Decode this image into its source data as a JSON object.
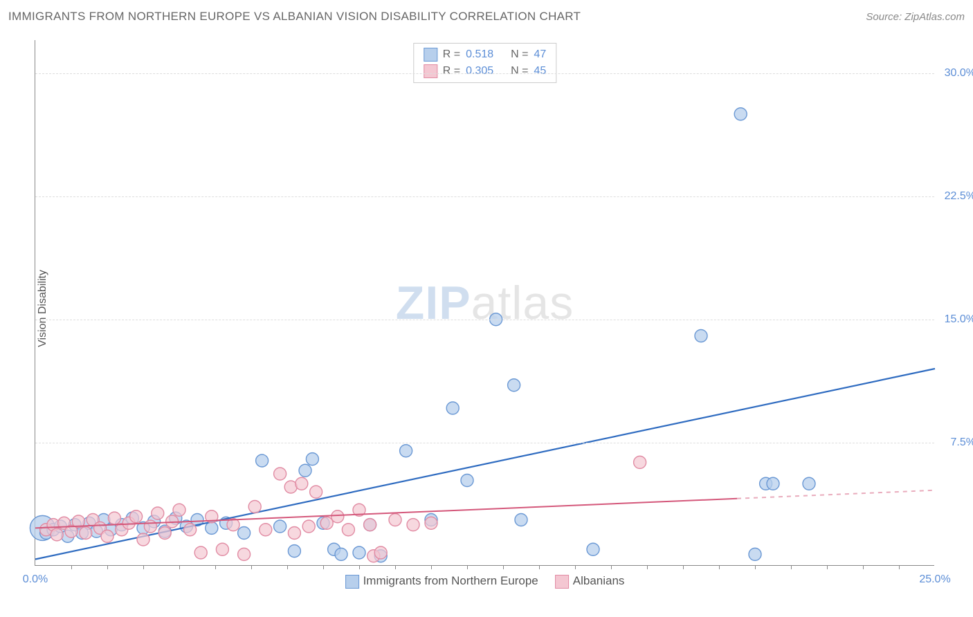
{
  "title": "IMMIGRANTS FROM NORTHERN EUROPE VS ALBANIAN VISION DISABILITY CORRELATION CHART",
  "source_label": "Source: ",
  "source_value": "ZipAtlas.com",
  "y_axis_label": "Vision Disability",
  "watermark": {
    "bold": "ZIP",
    "light": "atlas"
  },
  "chart": {
    "type": "scatter",
    "xlim": [
      0,
      25
    ],
    "ylim": [
      0,
      32
    ],
    "x_ticks": [
      0.0,
      25.0
    ],
    "x_tick_labels": [
      "0.0%",
      "25.0%"
    ],
    "x_minor_ticks": [
      1,
      2,
      3,
      4,
      5,
      6,
      7,
      8,
      9,
      10,
      11,
      12,
      13,
      14,
      15,
      16,
      17,
      18,
      19,
      20,
      21,
      22,
      23,
      24
    ],
    "y_ticks": [
      7.5,
      15.0,
      22.5,
      30.0
    ],
    "y_tick_labels": [
      "7.5%",
      "15.0%",
      "22.5%",
      "30.0%"
    ],
    "background_color": "#ffffff",
    "grid_color": "#dddddd",
    "axis_color": "#888888",
    "tick_label_color": "#5b8dd6",
    "series": [
      {
        "name": "Immigrants from Northern Europe",
        "color_fill": "#b7cfec",
        "color_stroke": "#6a98d4",
        "line_color": "#2e6bc0",
        "line_width": 2.2,
        "marker_radius": 9,
        "marker_opacity": 0.75,
        "R": 0.518,
        "N": 47,
        "trend": {
          "x1": 0,
          "y1": 0.4,
          "x2": 25,
          "y2": 12.0,
          "solid_until_x": 25
        },
        "points": [
          {
            "x": 0.2,
            "y": 2.3,
            "r": 18
          },
          {
            "x": 0.3,
            "y": 2.0
          },
          {
            "x": 0.5,
            "y": 2.2
          },
          {
            "x": 0.7,
            "y": 2.4
          },
          {
            "x": 0.9,
            "y": 1.8
          },
          {
            "x": 1.1,
            "y": 2.5
          },
          {
            "x": 1.3,
            "y": 2.0
          },
          {
            "x": 1.5,
            "y": 2.6
          },
          {
            "x": 1.7,
            "y": 2.1
          },
          {
            "x": 1.9,
            "y": 2.8
          },
          {
            "x": 2.1,
            "y": 2.2
          },
          {
            "x": 2.4,
            "y": 2.5
          },
          {
            "x": 2.7,
            "y": 2.9
          },
          {
            "x": 3.0,
            "y": 2.3
          },
          {
            "x": 3.3,
            "y": 2.7
          },
          {
            "x": 3.6,
            "y": 2.1
          },
          {
            "x": 3.9,
            "y": 2.9
          },
          {
            "x": 4.2,
            "y": 2.4
          },
          {
            "x": 4.5,
            "y": 2.8
          },
          {
            "x": 4.9,
            "y": 2.3
          },
          {
            "x": 5.3,
            "y": 2.6
          },
          {
            "x": 5.8,
            "y": 2.0
          },
          {
            "x": 6.3,
            "y": 6.4
          },
          {
            "x": 6.8,
            "y": 2.4
          },
          {
            "x": 7.2,
            "y": 0.9
          },
          {
            "x": 7.5,
            "y": 5.8
          },
          {
            "x": 7.7,
            "y": 6.5
          },
          {
            "x": 8.0,
            "y": 2.6
          },
          {
            "x": 8.3,
            "y": 1.0
          },
          {
            "x": 8.5,
            "y": 0.7
          },
          {
            "x": 9.0,
            "y": 0.8
          },
          {
            "x": 9.3,
            "y": 2.5
          },
          {
            "x": 9.6,
            "y": 0.6
          },
          {
            "x": 10.3,
            "y": 7.0
          },
          {
            "x": 11.0,
            "y": 2.8
          },
          {
            "x": 11.6,
            "y": 9.6
          },
          {
            "x": 12.0,
            "y": 5.2
          },
          {
            "x": 12.8,
            "y": 15.0
          },
          {
            "x": 13.3,
            "y": 11.0
          },
          {
            "x": 13.5,
            "y": 2.8
          },
          {
            "x": 15.5,
            "y": 1.0
          },
          {
            "x": 18.5,
            "y": 14.0
          },
          {
            "x": 19.6,
            "y": 27.5
          },
          {
            "x": 20.0,
            "y": 0.7
          },
          {
            "x": 20.3,
            "y": 5.0
          },
          {
            "x": 20.5,
            "y": 5.0
          },
          {
            "x": 21.5,
            "y": 5.0
          }
        ]
      },
      {
        "name": "Albanians",
        "color_fill": "#f4c7d2",
        "color_stroke": "#e18ba3",
        "line_color": "#d4577a",
        "line_width": 2.0,
        "marker_radius": 9,
        "marker_opacity": 0.7,
        "R": 0.305,
        "N": 45,
        "trend": {
          "x1": 0,
          "y1": 2.3,
          "x2": 25,
          "y2": 4.6,
          "solid_until_x": 19.5
        },
        "points": [
          {
            "x": 0.3,
            "y": 2.2
          },
          {
            "x": 0.5,
            "y": 2.5
          },
          {
            "x": 0.6,
            "y": 1.9
          },
          {
            "x": 0.8,
            "y": 2.6
          },
          {
            "x": 1.0,
            "y": 2.1
          },
          {
            "x": 1.2,
            "y": 2.7
          },
          {
            "x": 1.4,
            "y": 2.0
          },
          {
            "x": 1.6,
            "y": 2.8
          },
          {
            "x": 1.8,
            "y": 2.3
          },
          {
            "x": 2.0,
            "y": 1.8
          },
          {
            "x": 2.2,
            "y": 2.9
          },
          {
            "x": 2.4,
            "y": 2.2
          },
          {
            "x": 2.6,
            "y": 2.6
          },
          {
            "x": 2.8,
            "y": 3.0
          },
          {
            "x": 3.0,
            "y": 1.6
          },
          {
            "x": 3.2,
            "y": 2.4
          },
          {
            "x": 3.4,
            "y": 3.2
          },
          {
            "x": 3.6,
            "y": 2.0
          },
          {
            "x": 3.8,
            "y": 2.7
          },
          {
            "x": 4.0,
            "y": 3.4
          },
          {
            "x": 4.3,
            "y": 2.2
          },
          {
            "x": 4.6,
            "y": 0.8
          },
          {
            "x": 4.9,
            "y": 3.0
          },
          {
            "x": 5.2,
            "y": 1.0
          },
          {
            "x": 5.5,
            "y": 2.5
          },
          {
            "x": 5.8,
            "y": 0.7
          },
          {
            "x": 6.1,
            "y": 3.6
          },
          {
            "x": 6.4,
            "y": 2.2
          },
          {
            "x": 6.8,
            "y": 5.6
          },
          {
            "x": 7.1,
            "y": 4.8
          },
          {
            "x": 7.2,
            "y": 2.0
          },
          {
            "x": 7.4,
            "y": 5.0
          },
          {
            "x": 7.6,
            "y": 2.4
          },
          {
            "x": 7.8,
            "y": 4.5
          },
          {
            "x": 8.1,
            "y": 2.6
          },
          {
            "x": 8.4,
            "y": 3.0
          },
          {
            "x": 8.7,
            "y": 2.2
          },
          {
            "x": 9.0,
            "y": 3.4
          },
          {
            "x": 9.3,
            "y": 2.5
          },
          {
            "x": 9.4,
            "y": 0.6
          },
          {
            "x": 9.6,
            "y": 0.8
          },
          {
            "x": 10.0,
            "y": 2.8
          },
          {
            "x": 10.5,
            "y": 2.5
          },
          {
            "x": 11.0,
            "y": 2.6
          },
          {
            "x": 16.8,
            "y": 6.3
          }
        ]
      }
    ],
    "legend_top": {
      "R_label": "R  =",
      "N_label": "N  ="
    },
    "legend_bottom_labels": [
      "Immigrants from Northern Europe",
      "Albanians"
    ]
  }
}
